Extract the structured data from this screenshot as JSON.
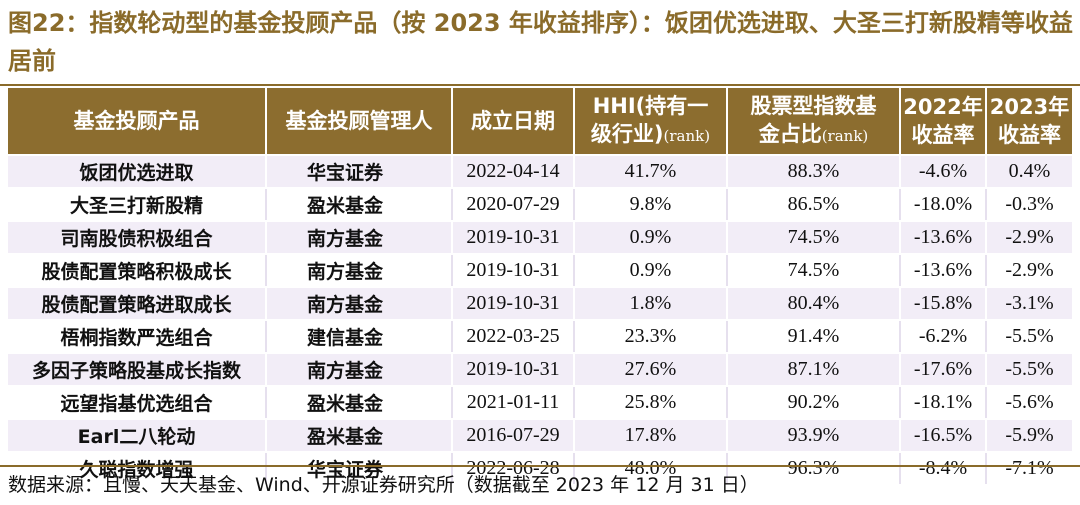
{
  "title": "图22：指数轮动型的基金投顾产品（按 2023 年收益排序）：饭团优选进取、大圣三打新股精等收益居前",
  "table": {
    "headers": [
      {
        "line1": "基金投顾产品",
        "line2": "",
        "small": ""
      },
      {
        "line1": "基金投顾管理人",
        "line2": "",
        "small": ""
      },
      {
        "line1": "成立日期",
        "line2": "",
        "small": ""
      },
      {
        "line1": "HHI(持有一",
        "line2": "级行业)",
        "small": "(rank)"
      },
      {
        "line1": "股票型指数基",
        "line2": "金占比",
        "small": "(rank)"
      },
      {
        "line1": "2022年",
        "line2": "收益率",
        "small": ""
      },
      {
        "line1": "2023年",
        "line2": "收益率",
        "small": ""
      }
    ],
    "rows": [
      [
        "饭团优选进取",
        "华宝证券",
        "2022-04-14",
        "41.7%",
        "88.3%",
        "-4.6%",
        "0.4%"
      ],
      [
        "大圣三打新股精",
        "盈米基金",
        "2020-07-29",
        "9.8%",
        "86.5%",
        "-18.0%",
        "-0.3%"
      ],
      [
        "司南股债积极组合",
        "南方基金",
        "2019-10-31",
        "0.9%",
        "74.5%",
        "-13.6%",
        "-2.9%"
      ],
      [
        "股债配置策略积极成长",
        "南方基金",
        "2019-10-31",
        "0.9%",
        "74.5%",
        "-13.6%",
        "-2.9%"
      ],
      [
        "股债配置策略进取成长",
        "南方基金",
        "2019-10-31",
        "1.8%",
        "80.4%",
        "-15.8%",
        "-3.1%"
      ],
      [
        "梧桐指数严选组合",
        "建信基金",
        "2022-03-25",
        "23.3%",
        "91.4%",
        "-6.2%",
        "-5.5%"
      ],
      [
        "多因子策略股基成长指数",
        "南方基金",
        "2019-10-31",
        "27.6%",
        "87.1%",
        "-17.6%",
        "-5.5%"
      ],
      [
        "远望指基优选组合",
        "盈米基金",
        "2021-01-11",
        "25.8%",
        "90.2%",
        "-18.1%",
        "-5.6%"
      ],
      [
        "Earl二八轮动",
        "盈米基金",
        "2016-07-29",
        "17.8%",
        "93.9%",
        "-16.5%",
        "-5.9%"
      ],
      [
        "久聪指数增强",
        "华宝证券",
        "2022-06-28",
        "48.0%",
        "96.3%",
        "-8.4%",
        "-7.1%"
      ]
    ]
  },
  "source": "数据来源：且慢、天天基金、Wind、开源证券研究所（数据截至 2023 年 12 月 31 日）"
}
